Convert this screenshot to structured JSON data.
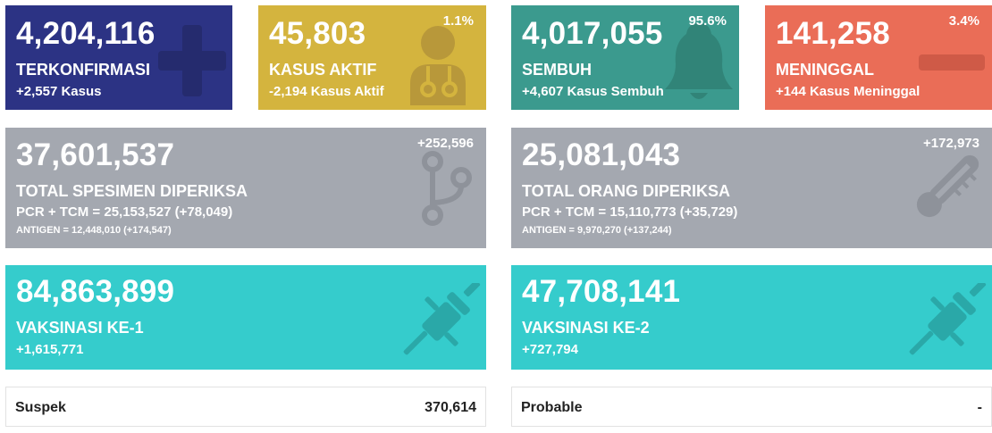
{
  "terkonfirmasi": {
    "value": "4,204,116",
    "label": "TERKONFIRMASI",
    "delta": "+2,557 Kasus",
    "icon": "plus-icon",
    "color": "#2c3384"
  },
  "kasus_aktif": {
    "value": "45,803",
    "label": "KASUS AKTIF",
    "delta": "-2,194 Kasus Aktif",
    "percent": "1.1%",
    "icon": "doctor-icon",
    "color": "#d4b43e"
  },
  "sembuh": {
    "value": "4,017,055",
    "label": "SEMBUH",
    "delta": "+4,607 Kasus Sembuh",
    "percent": "95.6%",
    "icon": "bell-icon",
    "color": "#3b9a8e"
  },
  "meninggal": {
    "value": "141,258",
    "label": "MENINGGAL",
    "delta": "+144 Kasus Meninggal",
    "percent": "3.4%",
    "icon": "minus-icon",
    "color": "#ea6d57"
  },
  "spesimen": {
    "value": "37,601,537",
    "label": "TOTAL SPESIMEN DIPERIKSA",
    "delta": "+252,596",
    "pcr": "PCR + TCM = 25,153,527 (+78,049)",
    "antigen": "ANTIGEN = 12,448,010 (+174,547)",
    "icon": "branch-icon",
    "color": "#a4a8b0"
  },
  "orang": {
    "value": "25,081,043",
    "label": "TOTAL ORANG DIPERIKSA",
    "delta": "+172,973",
    "pcr": "PCR + TCM = 15,110,773 (+35,729)",
    "antigen": "ANTIGEN = 9,970,270 (+137,244)",
    "icon": "thermometer-icon",
    "color": "#a4a8b0"
  },
  "vaksin1": {
    "value": "84,863,899",
    "label": "VAKSINASI KE-1",
    "delta": "+1,615,771",
    "icon": "syringe-icon",
    "color": "#35cccc"
  },
  "vaksin2": {
    "value": "47,708,141",
    "label": "VAKSINASI KE-2",
    "delta": "+727,794",
    "icon": "syringe-icon",
    "color": "#35cccc"
  },
  "suspek": {
    "label": "Suspek",
    "value": "370,614"
  },
  "probable": {
    "label": "Probable",
    "value": "-"
  }
}
